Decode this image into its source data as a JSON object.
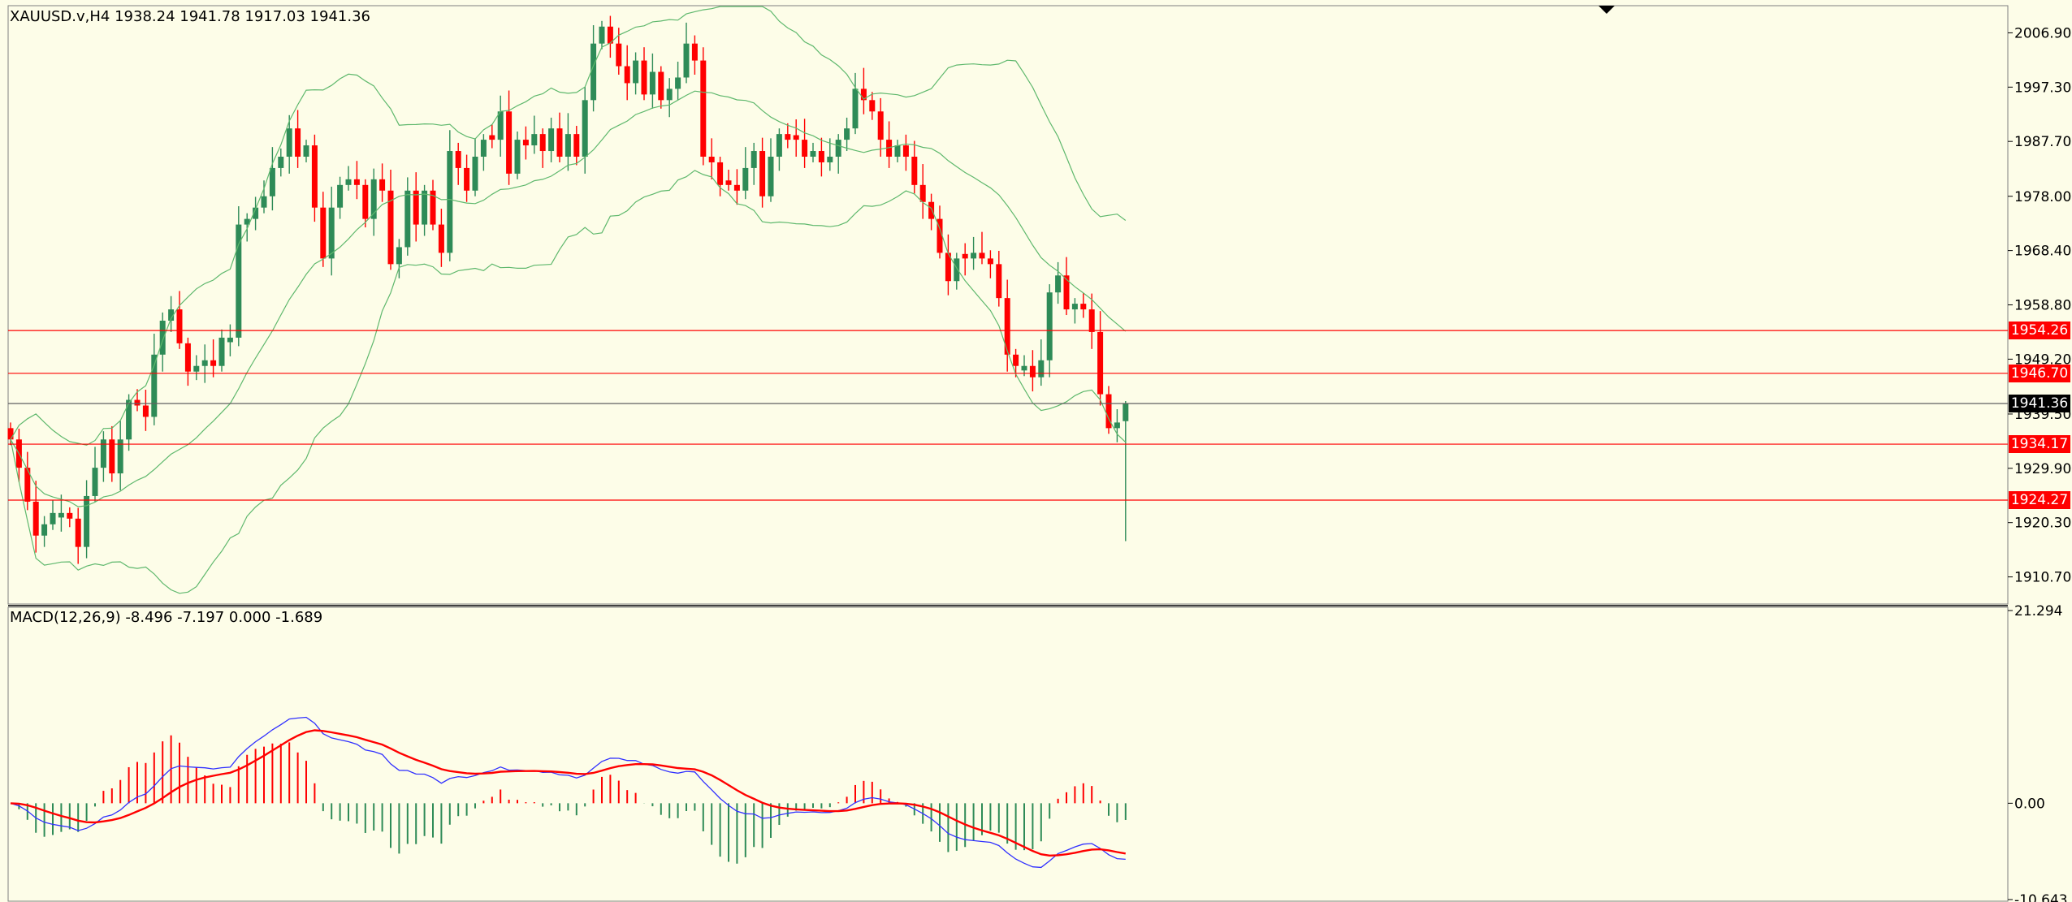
{
  "window": {
    "price_info": "XAUUSD.v,H4  1938.24 1941.78 1917.03 1941.36",
    "macd_info": "MACD(12,26,9) -8.496 -7.197 0.000 -1.689"
  },
  "colors": {
    "background": "#fdfde8",
    "bull": "#2e8b57",
    "bear": "#ff0000",
    "bands": "#5fb86d",
    "level_line": "#ff0000",
    "current_price_line": "#606060",
    "macd_main": "#3030ff",
    "macd_signal": "#ff0000"
  },
  "chart_data": [
    {
      "type": "candlestick",
      "symbol": "XAUUSD.v",
      "timeframe": "H4",
      "ohlc_last": {
        "open": 1938.24,
        "high": 1941.78,
        "low": 1917.03,
        "close": 1941.36
      },
      "y_ticks": [
        "2006.90",
        "1997.30",
        "1987.70",
        "1978.00",
        "1968.40",
        "1958.80",
        "1949.20",
        "1939.50",
        "1929.90",
        "1920.30",
        "1910.70"
      ],
      "ylim": [
        1905.9,
        2011.7
      ],
      "levels": [
        {
          "price": 1954.26,
          "label": "1954.26"
        },
        {
          "price": 1946.7,
          "label": "1946.70"
        },
        {
          "price": 1934.17,
          "label": "1934.17"
        },
        {
          "price": 1924.27,
          "label": "1924.27"
        }
      ],
      "current_price": {
        "price": 1941.36,
        "label": "1941.36"
      },
      "closes": [
        1935,
        1930,
        1924,
        1918,
        1920,
        1922,
        1922,
        1921,
        1916,
        1925,
        1930,
        1935,
        1929,
        1935,
        1942,
        1941,
        1939,
        1950,
        1956,
        1958,
        1952,
        1947,
        1948,
        1949,
        1948,
        1953,
        1953,
        1973,
        1974,
        1976,
        1978,
        1983,
        1985,
        1990,
        1985,
        1987,
        1976,
        1967,
        1976,
        1980,
        1981,
        1980,
        1974,
        1981,
        1979,
        1966,
        1969,
        1979,
        1973,
        1979,
        1973,
        1968,
        1986,
        1983,
        1979,
        1985,
        1988,
        1988,
        1993,
        1982,
        1988,
        1987,
        1989,
        1986,
        1990,
        1985,
        1989,
        1985,
        1995,
        2005,
        2008,
        2005,
        2001,
        1998,
        2002,
        1996,
        2000,
        1995,
        1997,
        1999,
        2005,
        2002,
        1985,
        1984,
        1980,
        1980,
        1979,
        1983,
        1986,
        1978,
        1985,
        1989,
        1988,
        1988,
        1985,
        1986,
        1984,
        1985,
        1988,
        1990,
        1997,
        1995,
        1993,
        1988,
        1985,
        1987,
        1985,
        1980,
        1977,
        1974,
        1968,
        1963,
        1967,
        1967,
        1968,
        1967,
        1966,
        1960,
        1950,
        1948,
        1948,
        1946,
        1949,
        1961,
        1964,
        1958,
        1959,
        1958,
        1954,
        1943,
        1937,
        1938,
        1941.36
      ]
    },
    {
      "type": "macd",
      "title": "MACD(12,26,9)",
      "values": {
        "main": -8.496,
        "signal": -7.197,
        "histogram": 0.0,
        "last": -1.689
      },
      "y_ticks": [
        "21.294",
        "0.00",
        "-10.643"
      ],
      "ylim": [
        -10.643,
        21.294
      ]
    }
  ]
}
